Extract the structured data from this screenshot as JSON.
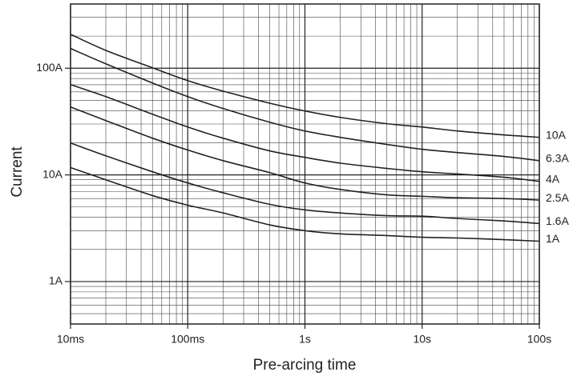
{
  "chart_data": {
    "type": "line",
    "x_label": "Pre-arcing time",
    "y_label": "Current",
    "xlog": true,
    "ylog": true,
    "grid": true,
    "xlim": [
      0.01,
      100
    ],
    "ylim": [
      0.4,
      400
    ],
    "xticks": [
      {
        "value": 0.01,
        "label": "10ms"
      },
      {
        "value": 0.1,
        "label": "100ms"
      },
      {
        "value": 1,
        "label": "1s"
      },
      {
        "value": 10,
        "label": "10s"
      },
      {
        "value": 100,
        "label": "100s"
      }
    ],
    "yticks": [
      {
        "value": 1,
        "label": "1A"
      },
      {
        "value": 10,
        "label": "10A"
      },
      {
        "value": 100,
        "label": "100A"
      }
    ],
    "xminorticks": [
      0.02,
      0.03,
      0.04,
      0.05,
      0.06,
      0.07,
      0.08,
      0.09,
      0.2,
      0.3,
      0.4,
      0.5,
      0.6,
      0.7,
      0.8,
      0.9,
      2,
      3,
      4,
      5,
      6,
      7,
      8,
      9,
      20,
      30,
      40,
      50,
      60,
      70,
      80,
      90
    ],
    "yminorticks": [
      0.5,
      0.6,
      0.7,
      0.8,
      0.9,
      2,
      3,
      4,
      5,
      6,
      7,
      8,
      9,
      20,
      30,
      40,
      50,
      60,
      70,
      80,
      90,
      200,
      300
    ],
    "x": [
      0.01,
      0.02,
      0.05,
      0.1,
      0.2,
      0.5,
      1,
      2,
      5,
      10,
      20,
      50,
      100
    ],
    "series": [
      {
        "name": "10A",
        "color": "#222222",
        "values": [
          208,
          147,
          101,
          76.5,
          61,
          47,
          39.7,
          34.6,
          30.2,
          28.1,
          25.8,
          23.7,
          22.5
        ]
      },
      {
        "name": "6.3A",
        "color": "#222222",
        "values": [
          153,
          110,
          72.7,
          54.2,
          41.9,
          31.2,
          25.8,
          22.5,
          19.3,
          17.4,
          16.2,
          14.9,
          13.6
        ]
      },
      {
        "name": "4A",
        "color": "#222222",
        "values": [
          70.2,
          54.2,
          37.1,
          28.1,
          22.1,
          16.8,
          14.6,
          12.9,
          11.5,
          10.7,
          10.2,
          9.5,
          8.7
        ]
      },
      {
        "name": "2.5A",
        "color": "#222222",
        "values": [
          43.3,
          32.3,
          22.1,
          17.1,
          13.6,
          10.5,
          8.4,
          7.3,
          6.5,
          6.3,
          6.1,
          6.0,
          5.8
        ]
      },
      {
        "name": "1.6A",
        "color": "#222222",
        "values": [
          19.9,
          15.1,
          10.7,
          8.4,
          6.8,
          5.3,
          4.7,
          4.4,
          4.15,
          4.1,
          3.9,
          3.7,
          3.5
        ]
      },
      {
        "name": "1A",
        "color": "#222222",
        "values": [
          11.7,
          9.0,
          6.4,
          5.2,
          4.4,
          3.4,
          3.0,
          2.8,
          2.7,
          2.6,
          2.56,
          2.47,
          2.39
        ]
      }
    ]
  }
}
